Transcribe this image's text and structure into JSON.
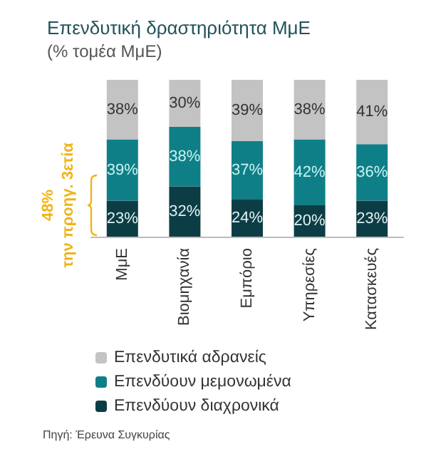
{
  "chart_data": {
    "type": "bar",
    "title": "Επενδυτική δραστηριότητα ΜμΕ",
    "subtitle": "(% τομέα ΜμΕ)",
    "categories": [
      "ΜμΕ",
      "Βιομηχανία",
      "Εμπόριο",
      "Υπηρεσίες",
      "Κατασκευές"
    ],
    "stacked": true,
    "ylim": [
      0,
      100
    ],
    "tick_labels": "x",
    "grid": false,
    "legend": "bottom",
    "series": [
      {
        "name": "Επενδύουν διαχρονικά",
        "color": "#0c3d45",
        "values": [
          23,
          32,
          24,
          20,
          23
        ],
        "value_labels": [
          "23%",
          "32%",
          "24%",
          "20%",
          "23%"
        ]
      },
      {
        "name": "Επενδύουν μεμονωμένα",
        "color": "#0f7f87",
        "values": [
          39,
          38,
          37,
          42,
          36
        ],
        "value_labels": [
          "39%",
          "38%",
          "37%",
          "42%",
          "36%"
        ]
      },
      {
        "name": "Επενδυτικά αδρανείς",
        "color": "#c3c3c3",
        "values": [
          38,
          30,
          39,
          38,
          41
        ],
        "value_labels": [
          "38%",
          "30%",
          "39%",
          "38%",
          "41%"
        ]
      }
    ],
    "annotations": [
      "48%\nτην προηγ. 3ετία",
      "Πηγή: Έρευνα Συγκυρίας"
    ]
  }
}
